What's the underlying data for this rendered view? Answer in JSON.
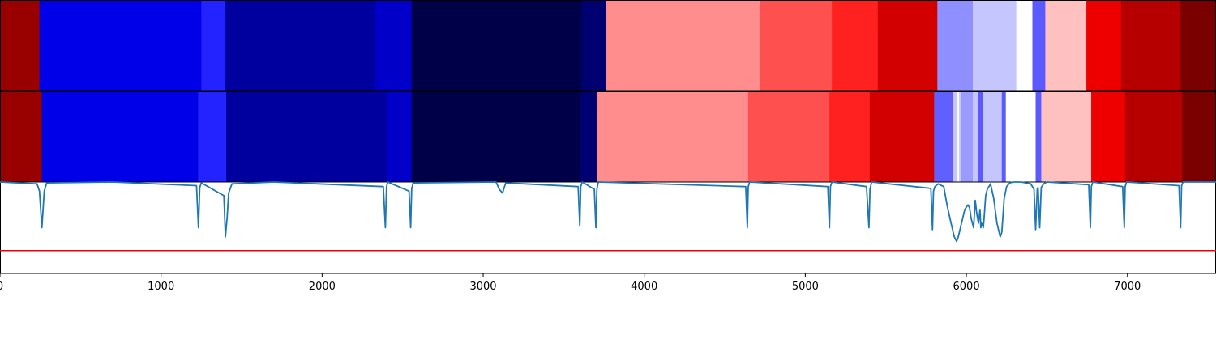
{
  "chart_data": {
    "type": "heatmap",
    "title": "",
    "xlabel": "",
    "ylabel": "",
    "xlim": [
      0,
      7550
    ],
    "grid": false,
    "x_ticks": [
      "0",
      "1000",
      "2000",
      "3000",
      "4000",
      "5000",
      "6000",
      "7000"
    ],
    "x_tick_values": [
      0,
      1000,
      2000,
      3000,
      4000,
      5000,
      6000,
      7000
    ],
    "bands": [
      {
        "segments": [
          {
            "x0": 0,
            "x1": 245,
            "color": "#990000"
          },
          {
            "x0": 245,
            "x1": 1250,
            "color": "#0000e8"
          },
          {
            "x0": 1250,
            "x1": 1400,
            "color": "#2323ff"
          },
          {
            "x0": 1400,
            "x1": 2330,
            "color": "#00009e"
          },
          {
            "x0": 2330,
            "x1": 2555,
            "color": "#0000c8"
          },
          {
            "x0": 2555,
            "x1": 3610,
            "color": "#000048"
          },
          {
            "x0": 3610,
            "x1": 3765,
            "color": "#000070"
          },
          {
            "x0": 3765,
            "x1": 4720,
            "color": "#ff8d8d"
          },
          {
            "x0": 4720,
            "x1": 5165,
            "color": "#ff5050"
          },
          {
            "x0": 5165,
            "x1": 5450,
            "color": "#ff2020"
          },
          {
            "x0": 5450,
            "x1": 5820,
            "color": "#d30000"
          },
          {
            "x0": 5820,
            "x1": 6040,
            "color": "#8f8fff"
          },
          {
            "x0": 6040,
            "x1": 6310,
            "color": "#c6c6ff"
          },
          {
            "x0": 6310,
            "x1": 6410,
            "color": "#ffffff"
          },
          {
            "x0": 6410,
            "x1": 6490,
            "color": "#5a5aff"
          },
          {
            "x0": 6490,
            "x1": 6745,
            "color": "#ffc0c0"
          },
          {
            "x0": 6745,
            "x1": 6960,
            "color": "#ee0000"
          },
          {
            "x0": 6960,
            "x1": 7330,
            "color": "#b60000"
          },
          {
            "x0": 7330,
            "x1": 7550,
            "color": "#7a0000"
          }
        ]
      },
      {
        "segments": [
          {
            "x0": 0,
            "x1": 260,
            "color": "#990000"
          },
          {
            "x0": 260,
            "x1": 1230,
            "color": "#0000e8"
          },
          {
            "x0": 1230,
            "x1": 1405,
            "color": "#2323ff"
          },
          {
            "x0": 1405,
            "x1": 2400,
            "color": "#00009e"
          },
          {
            "x0": 2400,
            "x1": 2555,
            "color": "#0000c8"
          },
          {
            "x0": 2555,
            "x1": 3600,
            "color": "#000048"
          },
          {
            "x0": 3600,
            "x1": 3705,
            "color": "#000070"
          },
          {
            "x0": 3705,
            "x1": 4645,
            "color": "#ff8d8d"
          },
          {
            "x0": 4645,
            "x1": 5150,
            "color": "#ff5050"
          },
          {
            "x0": 5150,
            "x1": 5400,
            "color": "#ff2020"
          },
          {
            "x0": 5400,
            "x1": 5800,
            "color": "#d30000"
          },
          {
            "x0": 5800,
            "x1": 5915,
            "color": "#6060ff"
          },
          {
            "x0": 5915,
            "x1": 5945,
            "color": "#c6c6ff"
          },
          {
            "x0": 5945,
            "x1": 5955,
            "color": "#ffffff"
          },
          {
            "x0": 5955,
            "x1": 5965,
            "color": "#c6c6ff"
          },
          {
            "x0": 5965,
            "x1": 6040,
            "color": "#9a9aff"
          },
          {
            "x0": 6040,
            "x1": 6075,
            "color": "#c6c6ff"
          },
          {
            "x0": 6075,
            "x1": 6105,
            "color": "#5a5aff"
          },
          {
            "x0": 6105,
            "x1": 6120,
            "color": "#c6c6ff"
          },
          {
            "x0": 6120,
            "x1": 6220,
            "color": "#c6c6ff"
          },
          {
            "x0": 6220,
            "x1": 6245,
            "color": "#5a5aff"
          },
          {
            "x0": 6245,
            "x1": 6430,
            "color": "#ffffff"
          },
          {
            "x0": 6430,
            "x1": 6465,
            "color": "#5a5aff"
          },
          {
            "x0": 6465,
            "x1": 6775,
            "color": "#ffc0c0"
          },
          {
            "x0": 6775,
            "x1": 6985,
            "color": "#ee0000"
          },
          {
            "x0": 6985,
            "x1": 7340,
            "color": "#b60000"
          },
          {
            "x0": 7340,
            "x1": 7550,
            "color": "#7a0000"
          }
        ]
      }
    ],
    "line_series": {
      "color": "#1f77b4",
      "ylim": [
        0,
        1
      ],
      "x": [
        0,
        230,
        245,
        260,
        275,
        290,
        700,
        1220,
        1232,
        1240,
        1250,
        1390,
        1400,
        1410,
        1420,
        1440,
        1700,
        2380,
        2393,
        2400,
        2408,
        2540,
        2550,
        2556,
        2565,
        3080,
        3100,
        3120,
        3140,
        3590,
        3600,
        3606,
        3615,
        3690,
        3700,
        3706,
        3715,
        4630,
        4640,
        4646,
        4655,
        5140,
        5150,
        5156,
        5165,
        5380,
        5395,
        5402,
        5412,
        5780,
        5790,
        5796,
        5805,
        5825,
        5860,
        5880,
        5905,
        5925,
        5940,
        5950,
        5970,
        5990,
        6010,
        6020,
        6030,
        6045,
        6055,
        6065,
        6075,
        6085,
        6090,
        6095,
        6105,
        6110,
        6120,
        6130,
        6150,
        6170,
        6190,
        6210,
        6220,
        6235,
        6250,
        6270,
        6290,
        6340,
        6400,
        6420,
        6430,
        6440,
        6445,
        6455,
        6465,
        6480,
        6500,
        6760,
        6770,
        6776,
        6785,
        6970,
        6980,
        6986,
        6995,
        7320,
        7330,
        7336,
        7345,
        7550
      ],
      "y": [
        1.0,
        0.98,
        0.9,
        0.5,
        0.9,
        0.99,
        1.0,
        0.96,
        0.5,
        0.94,
        0.99,
        0.85,
        0.4,
        0.6,
        0.88,
        0.98,
        1.0,
        0.95,
        0.5,
        0.95,
        1.0,
        0.9,
        0.5,
        0.92,
        0.99,
        1.0,
        0.92,
        0.88,
        0.99,
        0.95,
        0.52,
        0.95,
        1.0,
        0.92,
        0.5,
        0.92,
        1.0,
        0.95,
        0.5,
        0.95,
        1.0,
        0.95,
        0.5,
        0.95,
        1.0,
        0.95,
        0.5,
        0.92,
        1.0,
        0.93,
        0.48,
        0.9,
        0.95,
        0.98,
        0.95,
        0.75,
        0.55,
        0.4,
        0.35,
        0.4,
        0.55,
        0.7,
        0.75,
        0.72,
        0.6,
        0.5,
        0.8,
        0.65,
        0.55,
        0.7,
        0.5,
        0.55,
        0.5,
        0.6,
        0.85,
        0.92,
        0.98,
        0.82,
        0.55,
        0.4,
        0.45,
        0.82,
        0.95,
        0.99,
        1.0,
        1.0,
        0.98,
        0.92,
        0.48,
        0.92,
        0.94,
        0.5,
        0.94,
        0.98,
        1.0,
        0.97,
        0.5,
        0.95,
        1.0,
        0.95,
        0.5,
        0.95,
        1.0,
        0.96,
        0.5,
        0.96,
        1.0,
        1.0
      ],
      "reference_y": 0.25,
      "reference_color": "#ee0000"
    }
  }
}
